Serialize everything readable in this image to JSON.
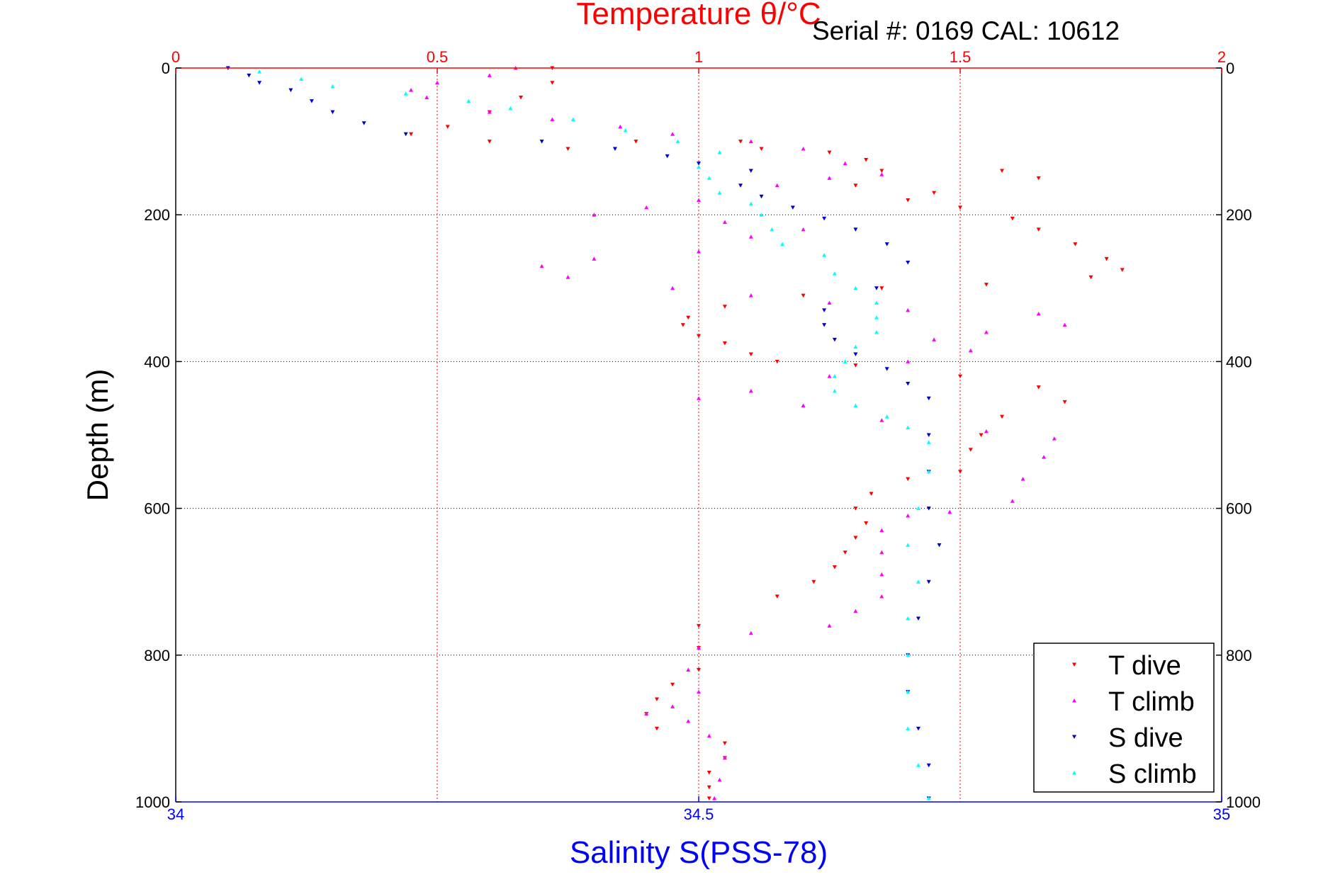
{
  "chart_data": {
    "type": "scatter",
    "title_top": "Temperature θ/°C",
    "serial_text": "Serial #: 0169 CAL: 10612",
    "ylabel": "Depth (m)",
    "xlabel_bottom": "Salinity S(PSS-78)",
    "x_top": {
      "label": "Temperature θ/°C",
      "lim": [
        0,
        2
      ],
      "ticks": [
        "0",
        "0.5",
        "1",
        "1.5",
        "2"
      ],
      "color": "#ff0000"
    },
    "x_bottom": {
      "label": "Salinity S(PSS-78)",
      "lim": [
        34,
        35
      ],
      "ticks": [
        "34",
        "34.5",
        "35"
      ],
      "color": "#0000ff"
    },
    "y": {
      "lim": [
        0,
        1000
      ],
      "reversed": true,
      "ticks": [
        "0",
        "200",
        "400",
        "600",
        "800",
        "1000"
      ]
    },
    "grid": true,
    "legend_position": "bottom-right",
    "series": [
      {
        "name": "T dive",
        "axis": "temperature",
        "marker": "triangle-down",
        "color": "#ff0000",
        "points": [
          [
            0.72,
            0
          ],
          [
            0.72,
            20
          ],
          [
            0.66,
            40
          ],
          [
            0.6,
            60
          ],
          [
            0.52,
            80
          ],
          [
            0.45,
            90
          ],
          [
            0.6,
            100
          ],
          [
            0.75,
            110
          ],
          [
            0.88,
            100
          ],
          [
            1.08,
            100
          ],
          [
            1.12,
            110
          ],
          [
            1.25,
            115
          ],
          [
            1.32,
            125
          ],
          [
            1.35,
            140
          ],
          [
            1.58,
            140
          ],
          [
            1.65,
            150
          ],
          [
            1.3,
            160
          ],
          [
            1.45,
            170
          ],
          [
            1.4,
            180
          ],
          [
            1.5,
            190
          ],
          [
            1.6,
            205
          ],
          [
            1.65,
            220
          ],
          [
            1.72,
            240
          ],
          [
            1.78,
            260
          ],
          [
            1.81,
            275
          ],
          [
            1.75,
            285
          ],
          [
            1.55,
            295
          ],
          [
            1.35,
            300
          ],
          [
            1.2,
            310
          ],
          [
            1.05,
            325
          ],
          [
            0.98,
            340
          ],
          [
            0.97,
            350
          ],
          [
            1.0,
            365
          ],
          [
            1.05,
            375
          ],
          [
            1.1,
            390
          ],
          [
            1.15,
            400
          ],
          [
            1.3,
            405
          ],
          [
            1.5,
            420
          ],
          [
            1.65,
            435
          ],
          [
            1.7,
            455
          ],
          [
            1.58,
            475
          ],
          [
            1.54,
            500
          ],
          [
            1.52,
            520
          ],
          [
            1.5,
            550
          ],
          [
            1.4,
            560
          ],
          [
            1.33,
            580
          ],
          [
            1.3,
            600
          ],
          [
            1.32,
            620
          ],
          [
            1.3,
            640
          ],
          [
            1.28,
            660
          ],
          [
            1.26,
            680
          ],
          [
            1.22,
            700
          ],
          [
            1.15,
            720
          ],
          [
            1.0,
            760
          ],
          [
            1.0,
            790
          ],
          [
            1.0,
            820
          ],
          [
            0.95,
            840
          ],
          [
            0.92,
            860
          ],
          [
            0.9,
            880
          ],
          [
            0.92,
            900
          ],
          [
            1.05,
            920
          ],
          [
            1.05,
            940
          ],
          [
            1.02,
            960
          ],
          [
            1.02,
            980
          ],
          [
            1.02,
            995
          ]
        ]
      },
      {
        "name": "T climb",
        "axis": "temperature",
        "marker": "triangle-up",
        "color": "#ff00ff",
        "points": [
          [
            0.65,
            0
          ],
          [
            0.6,
            10
          ],
          [
            0.5,
            20
          ],
          [
            0.45,
            30
          ],
          [
            0.48,
            40
          ],
          [
            0.6,
            60
          ],
          [
            0.72,
            70
          ],
          [
            0.85,
            80
          ],
          [
            0.95,
            90
          ],
          [
            1.1,
            100
          ],
          [
            1.2,
            110
          ],
          [
            1.28,
            130
          ],
          [
            1.35,
            145
          ],
          [
            1.25,
            150
          ],
          [
            1.15,
            160
          ],
          [
            1.0,
            180
          ],
          [
            0.9,
            190
          ],
          [
            0.8,
            200
          ],
          [
            1.05,
            210
          ],
          [
            1.2,
            220
          ],
          [
            1.1,
            230
          ],
          [
            1.0,
            250
          ],
          [
            0.8,
            260
          ],
          [
            0.7,
            270
          ],
          [
            0.75,
            285
          ],
          [
            0.95,
            300
          ],
          [
            1.1,
            310
          ],
          [
            1.25,
            320
          ],
          [
            1.4,
            330
          ],
          [
            1.65,
            335
          ],
          [
            1.7,
            350
          ],
          [
            1.55,
            360
          ],
          [
            1.45,
            370
          ],
          [
            1.52,
            385
          ],
          [
            1.4,
            400
          ],
          [
            1.25,
            420
          ],
          [
            1.1,
            440
          ],
          [
            1.0,
            450
          ],
          [
            1.2,
            460
          ],
          [
            1.35,
            480
          ],
          [
            1.55,
            495
          ],
          [
            1.68,
            505
          ],
          [
            1.66,
            530
          ],
          [
            1.62,
            560
          ],
          [
            1.6,
            590
          ],
          [
            1.48,
            605
          ],
          [
            1.4,
            610
          ],
          [
            1.35,
            630
          ],
          [
            1.35,
            660
          ],
          [
            1.35,
            690
          ],
          [
            1.35,
            720
          ],
          [
            1.3,
            740
          ],
          [
            1.25,
            760
          ],
          [
            1.1,
            770
          ],
          [
            1.0,
            790
          ],
          [
            0.98,
            820
          ],
          [
            1.0,
            850
          ],
          [
            0.95,
            870
          ],
          [
            0.9,
            880
          ],
          [
            0.98,
            890
          ],
          [
            1.02,
            910
          ],
          [
            1.05,
            940
          ],
          [
            1.04,
            970
          ],
          [
            1.03,
            995
          ]
        ]
      },
      {
        "name": "S dive",
        "axis": "salinity",
        "marker": "triangle-down",
        "color": "#0000cc",
        "points": [
          [
            34.05,
            0
          ],
          [
            34.07,
            10
          ],
          [
            34.08,
            20
          ],
          [
            34.11,
            30
          ],
          [
            34.13,
            45
          ],
          [
            34.15,
            60
          ],
          [
            34.18,
            75
          ],
          [
            34.22,
            90
          ],
          [
            34.35,
            100
          ],
          [
            34.42,
            110
          ],
          [
            34.47,
            120
          ],
          [
            34.5,
            130
          ],
          [
            34.55,
            140
          ],
          [
            34.54,
            160
          ],
          [
            34.56,
            175
          ],
          [
            34.59,
            190
          ],
          [
            34.62,
            205
          ],
          [
            34.65,
            220
          ],
          [
            34.68,
            240
          ],
          [
            34.7,
            265
          ],
          [
            34.67,
            300
          ],
          [
            34.62,
            330
          ],
          [
            34.62,
            350
          ],
          [
            34.63,
            370
          ],
          [
            34.65,
            390
          ],
          [
            34.68,
            410
          ],
          [
            34.7,
            430
          ],
          [
            34.72,
            450
          ],
          [
            34.72,
            500
          ],
          [
            34.72,
            550
          ],
          [
            34.72,
            600
          ],
          [
            34.73,
            650
          ],
          [
            34.72,
            700
          ],
          [
            34.71,
            750
          ],
          [
            34.7,
            800
          ],
          [
            34.7,
            850
          ],
          [
            34.71,
            900
          ],
          [
            34.72,
            950
          ],
          [
            34.72,
            995
          ]
        ]
      },
      {
        "name": "S climb",
        "axis": "salinity",
        "marker": "triangle-up",
        "color": "#00ffff",
        "points": [
          [
            34.08,
            5
          ],
          [
            34.12,
            15
          ],
          [
            34.15,
            25
          ],
          [
            34.22,
            35
          ],
          [
            34.28,
            45
          ],
          [
            34.32,
            55
          ],
          [
            34.38,
            70
          ],
          [
            34.43,
            85
          ],
          [
            34.48,
            100
          ],
          [
            34.52,
            115
          ],
          [
            34.5,
            135
          ],
          [
            34.51,
            150
          ],
          [
            34.52,
            170
          ],
          [
            34.55,
            185
          ],
          [
            34.56,
            200
          ],
          [
            34.57,
            220
          ],
          [
            34.58,
            240
          ],
          [
            34.62,
            255
          ],
          [
            34.63,
            280
          ],
          [
            34.65,
            300
          ],
          [
            34.67,
            320
          ],
          [
            34.67,
            340
          ],
          [
            34.67,
            360
          ],
          [
            34.65,
            380
          ],
          [
            34.64,
            400
          ],
          [
            34.63,
            420
          ],
          [
            34.63,
            440
          ],
          [
            34.65,
            460
          ],
          [
            34.68,
            475
          ],
          [
            34.7,
            490
          ],
          [
            34.72,
            510
          ],
          [
            34.72,
            550
          ],
          [
            34.71,
            600
          ],
          [
            34.7,
            650
          ],
          [
            34.71,
            700
          ],
          [
            34.7,
            750
          ],
          [
            34.7,
            800
          ],
          [
            34.7,
            850
          ],
          [
            34.7,
            900
          ],
          [
            34.71,
            950
          ],
          [
            34.72,
            995
          ]
        ]
      }
    ]
  }
}
